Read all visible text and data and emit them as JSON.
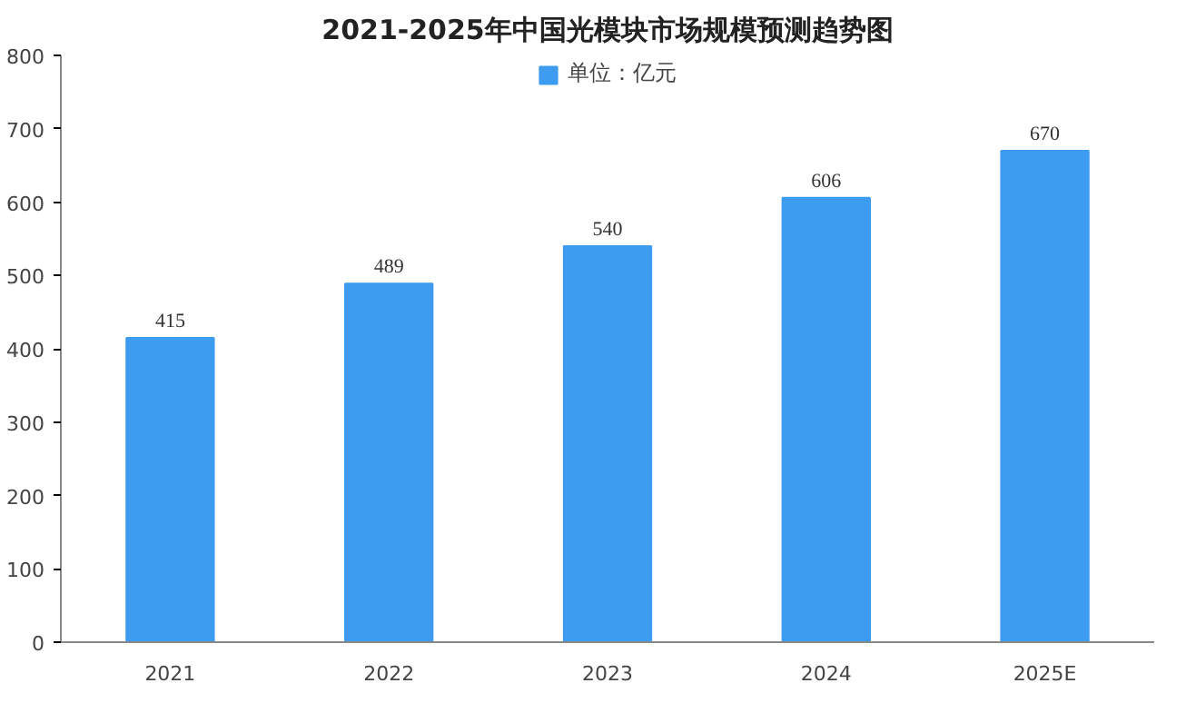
{
  "chart_data": {
    "type": "bar",
    "title": "2021-2025年中国光模块市场规模预测趋势图",
    "categories": [
      "2021",
      "2022",
      "2023",
      "2024",
      "2025E"
    ],
    "series": [
      {
        "name": "单位：亿元",
        "color": "#3d9bf0",
        "values": [
          415,
          489,
          540,
          606,
          670
        ]
      }
    ],
    "ylim": [
      0,
      800
    ],
    "yticks": [
      0,
      100,
      200,
      300,
      400,
      500,
      600,
      700,
      800
    ],
    "grid": false,
    "legend": "top",
    "data_labels": true
  }
}
